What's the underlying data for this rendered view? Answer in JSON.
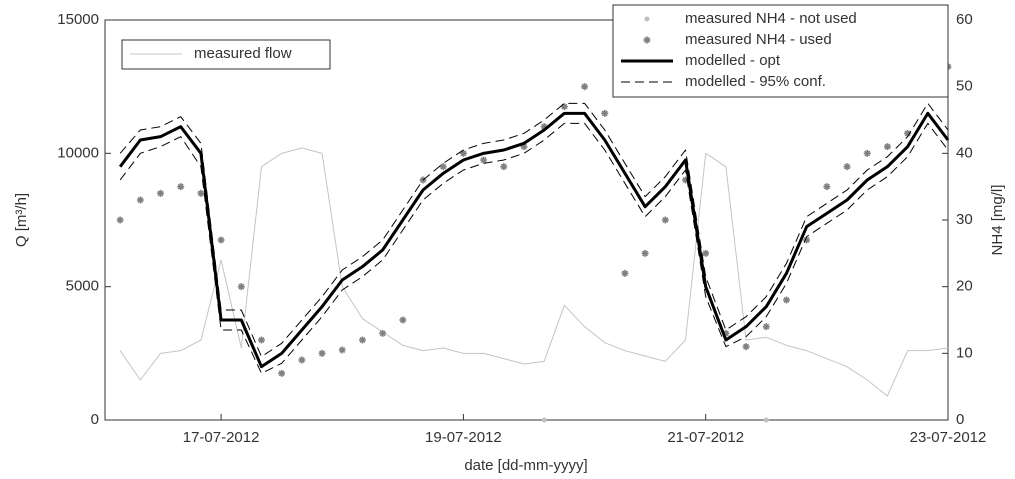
{
  "chart_data": {
    "type": "line",
    "xlabel": "date [dd-mm-yyyy]",
    "ylabel": "Q [m³/h]",
    "y2label": "NH4 [mg/l]",
    "xlim": [
      "2012-07-16T01:00",
      "2012-07-23T00:00"
    ],
    "xticks": [
      {
        "value": "2012-07-17T00:00",
        "label": "17-07-2012"
      },
      {
        "value": "2012-07-19T00:00",
        "label": "19-07-2012"
      },
      {
        "value": "2012-07-21T00:00",
        "label": "21-07-2012"
      },
      {
        "value": "2012-07-23T00:00",
        "label": "23-07-2012"
      }
    ],
    "ylim": [
      0,
      15000
    ],
    "yticks": [
      0,
      5000,
      10000,
      15000
    ],
    "y2lim": [
      0,
      60
    ],
    "y2ticks": [
      0,
      10,
      20,
      30,
      40,
      50,
      60
    ],
    "legend": "upper left",
    "legend2": "upper right",
    "x": [
      "2012-07-16T04:00",
      "2012-07-16T08:00",
      "2012-07-16T12:00",
      "2012-07-16T16:00",
      "2012-07-16T20:00",
      "2012-07-17T00:00",
      "2012-07-17T04:00",
      "2012-07-17T08:00",
      "2012-07-17T12:00",
      "2012-07-17T16:00",
      "2012-07-17T20:00",
      "2012-07-18T00:00",
      "2012-07-18T04:00",
      "2012-07-18T08:00",
      "2012-07-18T12:00",
      "2012-07-18T16:00",
      "2012-07-18T20:00",
      "2012-07-19T00:00",
      "2012-07-19T04:00",
      "2012-07-19T08:00",
      "2012-07-19T12:00",
      "2012-07-19T16:00",
      "2012-07-19T20:00",
      "2012-07-20T00:00",
      "2012-07-20T04:00",
      "2012-07-20T08:00",
      "2012-07-20T12:00",
      "2012-07-20T16:00",
      "2012-07-20T20:00",
      "2012-07-21T00:00",
      "2012-07-21T04:00",
      "2012-07-21T08:00",
      "2012-07-21T12:00",
      "2012-07-21T16:00",
      "2012-07-21T20:00",
      "2012-07-22T00:00",
      "2012-07-22T04:00",
      "2012-07-22T08:00",
      "2012-07-22T12:00",
      "2012-07-22T16:00",
      "2012-07-22T20:00",
      "2012-07-23T00:00"
    ],
    "series": [
      {
        "name": "measured flow",
        "color": "#c4c4c4",
        "style": "thin",
        "values": [
          2600,
          1500,
          2500,
          2600,
          3000,
          6000,
          2700,
          9500,
          10000,
          10200,
          10000,
          5000,
          3800,
          3300,
          2800,
          2600,
          2700,
          2500,
          2500,
          2300,
          2100,
          2200,
          4300,
          3500,
          2900,
          2600,
          2400,
          2200,
          3000,
          10000,
          9500,
          3000,
          3100,
          2800,
          2600,
          2300,
          2000,
          1500,
          900,
          2600,
          2600,
          2700
        ]
      },
      {
        "name": "measured NH4 - not used",
        "color": "#c0c0c0",
        "style": "dot",
        "axis": "y2",
        "x": [
          "2012-07-19T16:00",
          "2012-07-21T12:00"
        ],
        "values": [
          0,
          0
        ]
      },
      {
        "name": "measured NH4 - used",
        "color": "#808080",
        "style": "star",
        "axis": "y2",
        "values": [
          30,
          33,
          34,
          35,
          34,
          27,
          20,
          12,
          7,
          9,
          10,
          10.5,
          12,
          13,
          15,
          36,
          38,
          40,
          39,
          38,
          41,
          44,
          47,
          50,
          46,
          22,
          25,
          30,
          36,
          25,
          13,
          11,
          14,
          18,
          27,
          35,
          38,
          40,
          41,
          43,
          50,
          53
        ]
      },
      {
        "name": "modelled - opt",
        "color": "#000000",
        "style": "thick",
        "axis": "y2",
        "values": [
          38,
          42,
          42.5,
          44,
          40,
          15,
          15,
          8,
          10,
          13.5,
          17,
          21,
          23,
          25.5,
          30,
          34.5,
          37,
          39,
          40,
          40.5,
          41.5,
          43.5,
          46,
          46,
          42,
          37,
          32,
          35,
          39,
          20,
          12,
          14,
          17,
          22,
          29,
          31,
          33,
          36,
          38,
          41,
          46,
          42
        ]
      },
      {
        "name": "modelled - 95% conf.",
        "color": "#000000",
        "style": "dashed",
        "axis": "y2",
        "lower": [
          36,
          40,
          41,
          42.5,
          38,
          13.5,
          13.5,
          7,
          8.5,
          12,
          15.5,
          19.5,
          21.5,
          24,
          28.5,
          33,
          35.5,
          37.5,
          38.5,
          39,
          40,
          42,
          44.5,
          44.5,
          40.5,
          35.5,
          30.5,
          33.5,
          37.5,
          18.5,
          11,
          12.5,
          15.5,
          20.5,
          27.5,
          29.5,
          31.5,
          34.5,
          36.5,
          39.5,
          44.5,
          40.5
        ],
        "upper": [
          40,
          43.5,
          44,
          45.5,
          41.5,
          16.5,
          16.5,
          9.5,
          11.5,
          15,
          18.5,
          22.5,
          24.5,
          27,
          31.5,
          36,
          38.5,
          40.5,
          41.5,
          42,
          43,
          45,
          47.5,
          47.5,
          43.5,
          38.5,
          33.5,
          36.5,
          40.5,
          21.5,
          13.5,
          15.5,
          18.5,
          23.5,
          30.5,
          32.5,
          34.5,
          37.5,
          39.5,
          42.5,
          47.5,
          43.5
        ]
      }
    ]
  }
}
